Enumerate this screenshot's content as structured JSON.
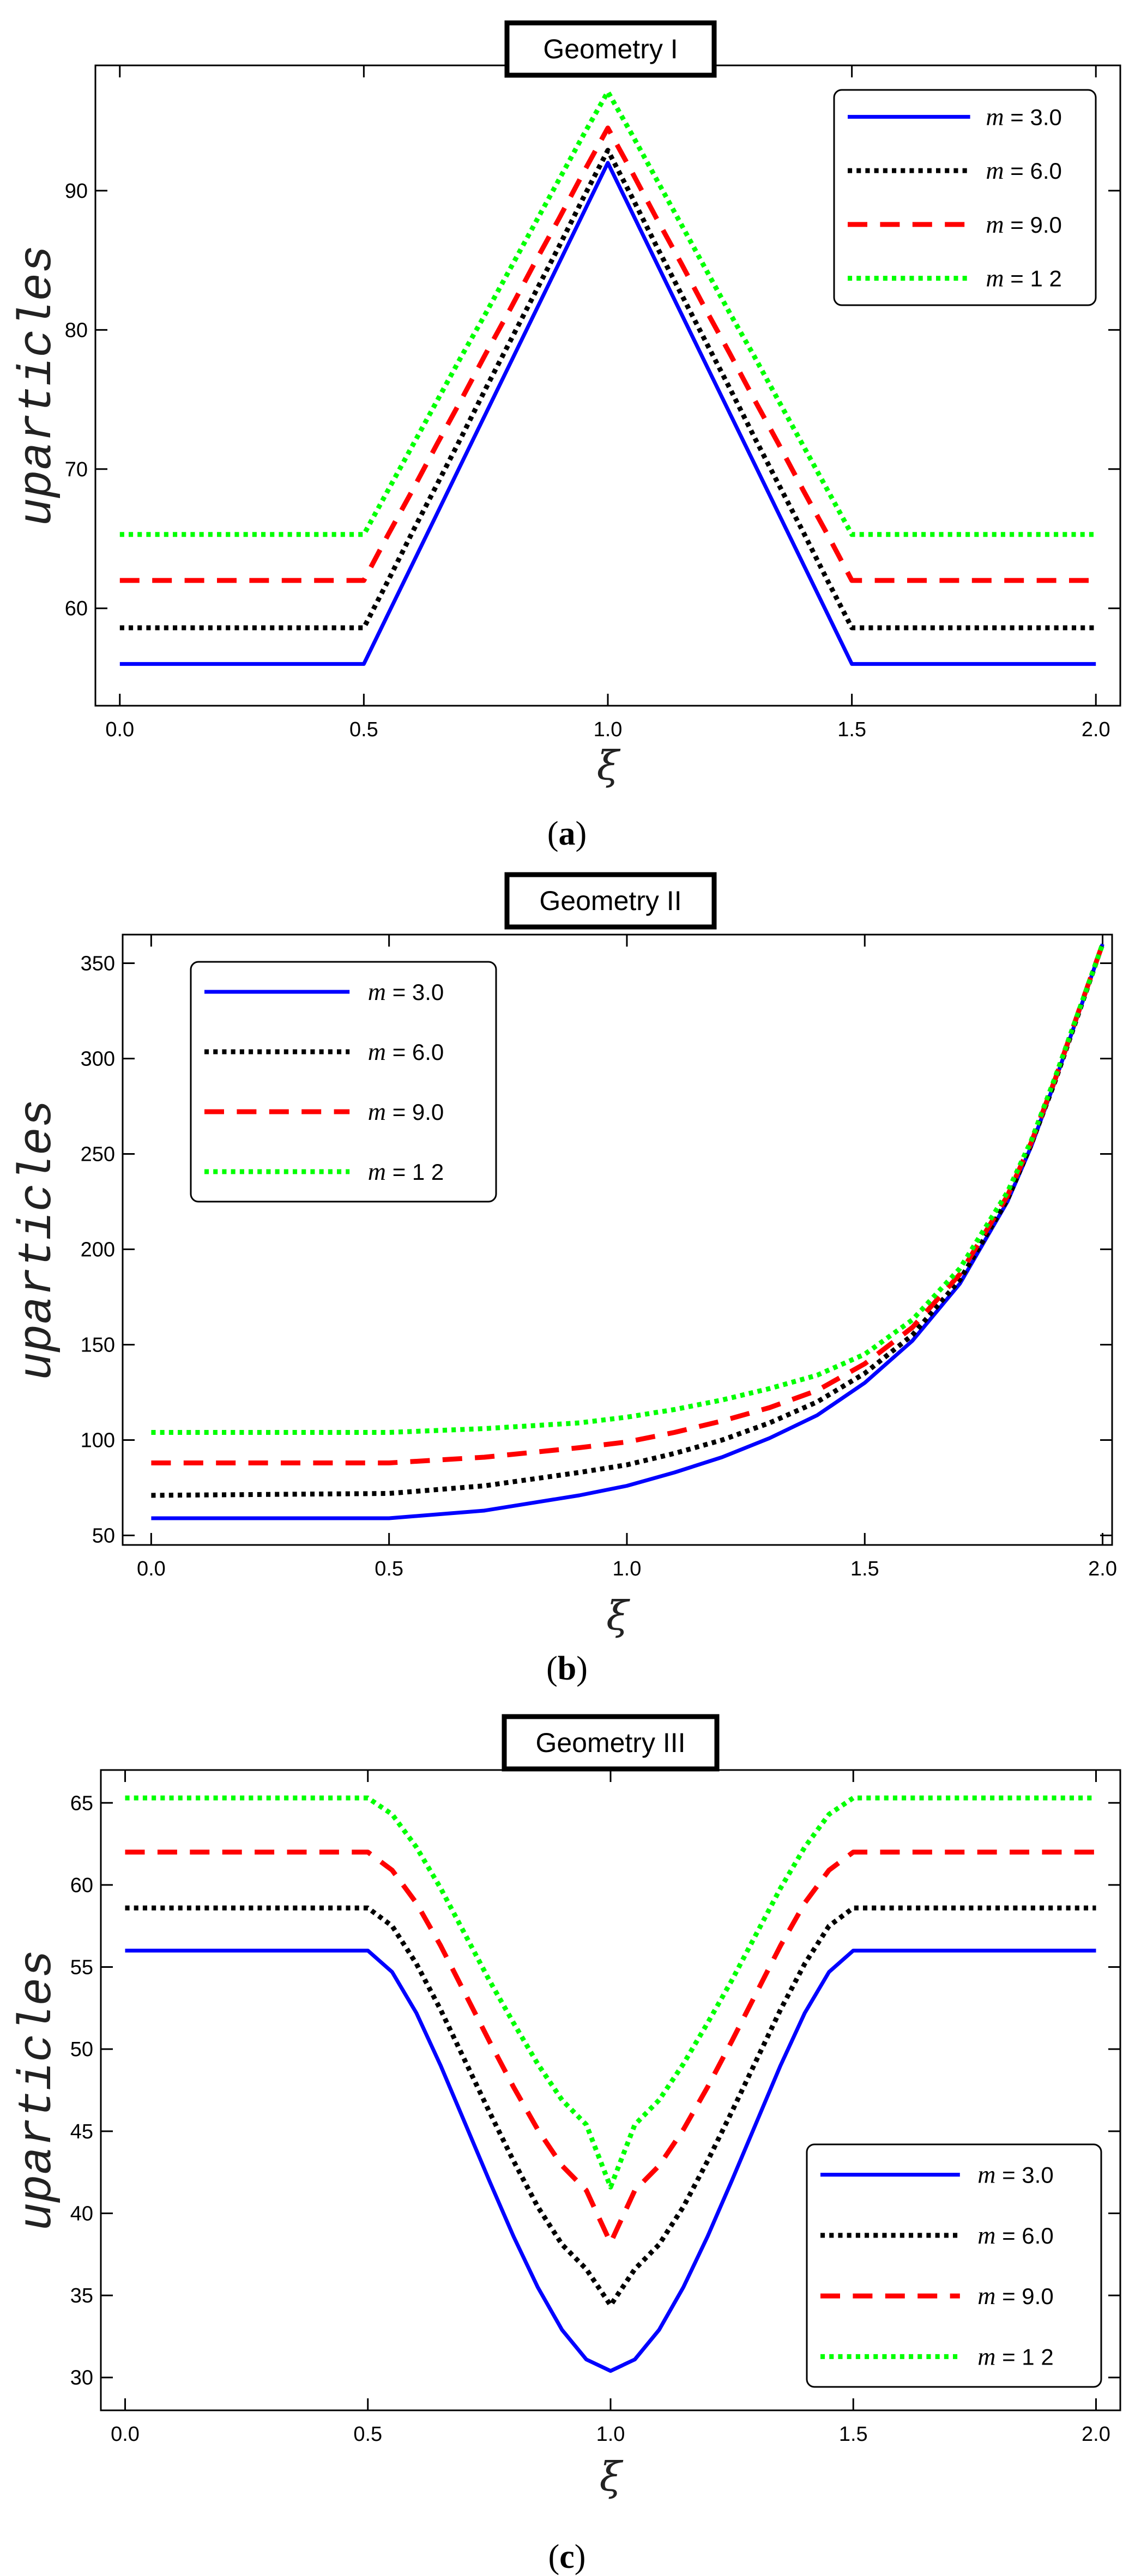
{
  "series_styles": [
    {
      "color": "#0000ff",
      "dash": "solid"
    },
    {
      "color": "#000000",
      "dash": "dotted"
    },
    {
      "color": "#ff0000",
      "dash": "dashed"
    },
    {
      "color": "#00ff00",
      "dash": "dotted"
    }
  ],
  "chart_data": [
    {
      "type": "line",
      "title": "Geometry I",
      "caption_pre": "(",
      "caption_letter": "a",
      "caption_post": ")",
      "xlabel": "ξ",
      "ylabel": "uparticles",
      "xlim": [
        -0.05,
        2.05
      ],
      "ylim": [
        53,
        99
      ],
      "xticks": [
        0.0,
        0.5,
        1.0,
        1.5,
        2.0
      ],
      "xtick_labels": [
        "0.0",
        "0.5",
        "1.0",
        "1.5",
        "2.0"
      ],
      "yticks": [
        60,
        70,
        80,
        90
      ],
      "ytick_labels": [
        "60",
        "70",
        "80",
        "90"
      ],
      "legend_position": "top-right",
      "series": [
        {
          "name": "m = 3.0",
          "m_label": "m",
          "value_label": "= 3.0",
          "x": [
            0.0,
            0.5,
            0.55,
            0.6,
            0.65,
            0.7,
            0.75,
            0.8,
            0.85,
            0.9,
            0.95,
            1.0,
            1.05,
            1.1,
            1.15,
            1.2,
            1.25,
            1.3,
            1.35,
            1.4,
            1.45,
            1.5,
            2.0
          ],
          "y": [
            56.0,
            56.0,
            59.6,
            63.2,
            66.8,
            70.4,
            74.0,
            77.6,
            81.2,
            84.8,
            88.4,
            92.0,
            88.4,
            84.8,
            81.2,
            77.6,
            74.0,
            70.4,
            66.8,
            63.2,
            59.6,
            56.0,
            56.0
          ]
        },
        {
          "name": "m = 6.0",
          "m_label": "m",
          "value_label": "= 6.0",
          "x": [
            0.0,
            0.5,
            0.55,
            0.6,
            0.65,
            0.7,
            0.75,
            0.8,
            0.85,
            0.9,
            0.95,
            1.0,
            1.05,
            1.1,
            1.15,
            1.2,
            1.25,
            1.3,
            1.35,
            1.4,
            1.45,
            1.5,
            2.0
          ],
          "y": [
            58.6,
            58.6,
            62.0,
            65.5,
            68.9,
            72.3,
            75.8,
            79.2,
            82.6,
            86.0,
            89.5,
            92.9,
            89.5,
            86.0,
            82.6,
            79.2,
            75.8,
            72.3,
            68.9,
            65.5,
            62.0,
            58.6,
            58.6
          ]
        },
        {
          "name": "m = 9.0",
          "m_label": "m",
          "value_label": "= 9.0",
          "x": [
            0.0,
            0.5,
            0.55,
            0.6,
            0.65,
            0.7,
            0.75,
            0.8,
            0.85,
            0.9,
            0.95,
            1.0,
            1.05,
            1.1,
            1.15,
            1.2,
            1.25,
            1.3,
            1.35,
            1.4,
            1.45,
            1.5,
            2.0
          ],
          "y": [
            62.0,
            62.0,
            65.3,
            68.5,
            71.8,
            75.0,
            78.3,
            81.5,
            84.8,
            88.0,
            91.3,
            94.5,
            91.3,
            88.0,
            84.8,
            81.5,
            78.3,
            75.0,
            71.8,
            68.5,
            65.3,
            62.0,
            62.0
          ]
        },
        {
          "name": "m = 1 2",
          "m_label": "m",
          "value_label": "= 1 2",
          "x": [
            0.0,
            0.5,
            0.55,
            0.6,
            0.65,
            0.7,
            0.75,
            0.8,
            0.85,
            0.9,
            0.95,
            1.0,
            1.05,
            1.1,
            1.15,
            1.2,
            1.25,
            1.3,
            1.35,
            1.4,
            1.45,
            1.5,
            2.0
          ],
          "y": [
            65.3,
            65.3,
            68.5,
            71.7,
            74.9,
            78.1,
            81.2,
            84.4,
            87.6,
            90.8,
            94.0,
            97.1,
            94.0,
            90.8,
            87.6,
            84.4,
            81.2,
            78.1,
            74.9,
            71.7,
            68.5,
            65.3,
            65.3
          ]
        }
      ]
    },
    {
      "type": "line",
      "title": "Geometry II",
      "caption_pre": "(",
      "caption_letter": "b",
      "caption_post": ")",
      "xlabel": "ξ",
      "ylabel": "uparticles",
      "xlim": [
        -0.06,
        2.02
      ],
      "ylim": [
        45,
        365
      ],
      "xticks": [
        0.0,
        0.5,
        1.0,
        1.5,
        2.0
      ],
      "xtick_labels": [
        "0.0",
        "0.5",
        "1.0",
        "1.5",
        "2.0"
      ],
      "yticks": [
        50,
        100,
        150,
        200,
        250,
        300,
        350
      ],
      "ytick_labels": [
        "50",
        "100",
        "150",
        "200",
        "250",
        "300",
        "350"
      ],
      "legend_position": "top-left",
      "series": [
        {
          "name": "m = 3.0",
          "m_label": "m",
          "value_label": "= 3.0",
          "x": [
            0.0,
            0.5,
            0.7,
            0.9,
            1.0,
            1.1,
            1.2,
            1.3,
            1.4,
            1.5,
            1.6,
            1.7,
            1.8,
            1.85,
            1.9,
            1.95,
            2.0
          ],
          "y": [
            59,
            59,
            63,
            71,
            76,
            83,
            91,
            101,
            113,
            130,
            152,
            182,
            225,
            254,
            288,
            324,
            360
          ]
        },
        {
          "name": "m = 6.0",
          "m_label": "m",
          "value_label": "= 6.0",
          "x": [
            0.0,
            0.5,
            0.7,
            0.9,
            1.0,
            1.1,
            1.2,
            1.3,
            1.4,
            1.5,
            1.6,
            1.7,
            1.8,
            1.85,
            1.9,
            1.95,
            2.0
          ],
          "y": [
            71,
            72,
            76,
            83,
            87,
            93,
            100,
            109,
            120,
            135,
            155,
            184,
            226,
            255,
            288,
            324,
            360
          ]
        },
        {
          "name": "m = 9.0",
          "m_label": "m",
          "value_label": "= 9.0",
          "x": [
            0.0,
            0.5,
            0.7,
            0.9,
            1.0,
            1.1,
            1.2,
            1.3,
            1.4,
            1.5,
            1.6,
            1.7,
            1.8,
            1.85,
            1.9,
            1.95,
            2.0
          ],
          "y": [
            88,
            88,
            91,
            96,
            99,
            104,
            110,
            117,
            126,
            140,
            159,
            187,
            228,
            256,
            289,
            325,
            360
          ]
        },
        {
          "name": "m = 1 2",
          "m_label": "m",
          "value_label": "= 1 2",
          "x": [
            0.0,
            0.5,
            0.7,
            0.9,
            1.0,
            1.1,
            1.2,
            1.3,
            1.4,
            1.5,
            1.6,
            1.7,
            1.8,
            1.85,
            1.9,
            1.95,
            2.0
          ],
          "y": [
            104,
            104,
            106,
            109,
            112,
            116,
            121,
            127,
            134,
            145,
            163,
            190,
            230,
            257,
            290,
            325,
            360
          ]
        }
      ]
    },
    {
      "type": "line",
      "title": "Geometry III",
      "caption_pre": "(",
      "caption_letter": "c",
      "caption_post": ")",
      "xlabel": "ξ",
      "ylabel": "uparticles",
      "xlim": [
        -0.05,
        2.05
      ],
      "ylim": [
        28,
        67
      ],
      "xticks": [
        0.0,
        0.5,
        1.0,
        1.5,
        2.0
      ],
      "xtick_labels": [
        "0.0",
        "0.5",
        "1.0",
        "1.5",
        "2.0"
      ],
      "yticks": [
        30,
        35,
        40,
        45,
        50,
        55,
        60,
        65
      ],
      "ytick_labels": [
        "30",
        "35",
        "40",
        "45",
        "50",
        "55",
        "60",
        "65"
      ],
      "legend_position": "bottom-right",
      "series": [
        {
          "name": "m = 3.0",
          "m_label": "m",
          "value_label": "= 3.0",
          "x": [
            0.0,
            0.5,
            0.55,
            0.6,
            0.65,
            0.7,
            0.75,
            0.8,
            0.85,
            0.9,
            0.95,
            1.0,
            1.05,
            1.1,
            1.15,
            1.2,
            1.25,
            1.3,
            1.35,
            1.4,
            1.45,
            1.5,
            2.0
          ],
          "y": [
            56.0,
            56.0,
            54.7,
            52.2,
            49.0,
            45.5,
            42.0,
            38.6,
            35.5,
            32.9,
            31.1,
            30.4,
            31.1,
            32.9,
            35.5,
            38.6,
            42.0,
            45.5,
            49.0,
            52.2,
            54.7,
            56.0,
            56.0
          ]
        },
        {
          "name": "m = 6.0",
          "m_label": "m",
          "value_label": "= 6.0",
          "x": [
            0.0,
            0.5,
            0.55,
            0.6,
            0.65,
            0.7,
            0.75,
            0.8,
            0.85,
            0.9,
            0.95,
            1.0,
            1.05,
            1.1,
            1.15,
            1.2,
            1.25,
            1.3,
            1.35,
            1.4,
            1.45,
            1.5,
            2.0
          ],
          "y": [
            58.6,
            58.6,
            57.5,
            55.2,
            52.4,
            49.3,
            46.2,
            43.2,
            40.4,
            38.1,
            36.6,
            34.4,
            36.6,
            38.1,
            40.4,
            43.2,
            46.2,
            49.3,
            52.4,
            55.2,
            57.5,
            58.6,
            58.6
          ]
        },
        {
          "name": "m = 9.0",
          "m_label": "m",
          "value_label": "= 9.0",
          "x": [
            0.0,
            0.5,
            0.55,
            0.6,
            0.65,
            0.7,
            0.75,
            0.8,
            0.85,
            0.9,
            0.95,
            1.0,
            1.05,
            1.1,
            1.15,
            1.2,
            1.25,
            1.3,
            1.35,
            1.4,
            1.45,
            1.5,
            2.0
          ],
          "y": [
            62.0,
            62.0,
            60.9,
            58.9,
            56.3,
            53.4,
            50.5,
            47.7,
            45.1,
            42.9,
            41.4,
            38.2,
            41.4,
            42.9,
            45.1,
            47.7,
            50.5,
            53.4,
            56.3,
            58.9,
            60.9,
            62.0,
            62.0
          ]
        },
        {
          "name": "m = 1 2",
          "m_label": "m",
          "value_label": "= 1 2",
          "x": [
            0.0,
            0.5,
            0.55,
            0.6,
            0.65,
            0.7,
            0.75,
            0.8,
            0.85,
            0.9,
            0.95,
            1.0,
            1.05,
            1.1,
            1.15,
            1.2,
            1.25,
            1.3,
            1.35,
            1.4,
            1.45,
            1.5,
            2.0
          ],
          "y": [
            65.3,
            65.3,
            64.3,
            62.3,
            59.8,
            57.0,
            54.2,
            51.6,
            49.1,
            46.9,
            45.4,
            41.6,
            45.4,
            46.9,
            49.1,
            51.6,
            54.2,
            57.0,
            59.8,
            62.3,
            64.3,
            65.3,
            65.3
          ]
        }
      ]
    }
  ]
}
